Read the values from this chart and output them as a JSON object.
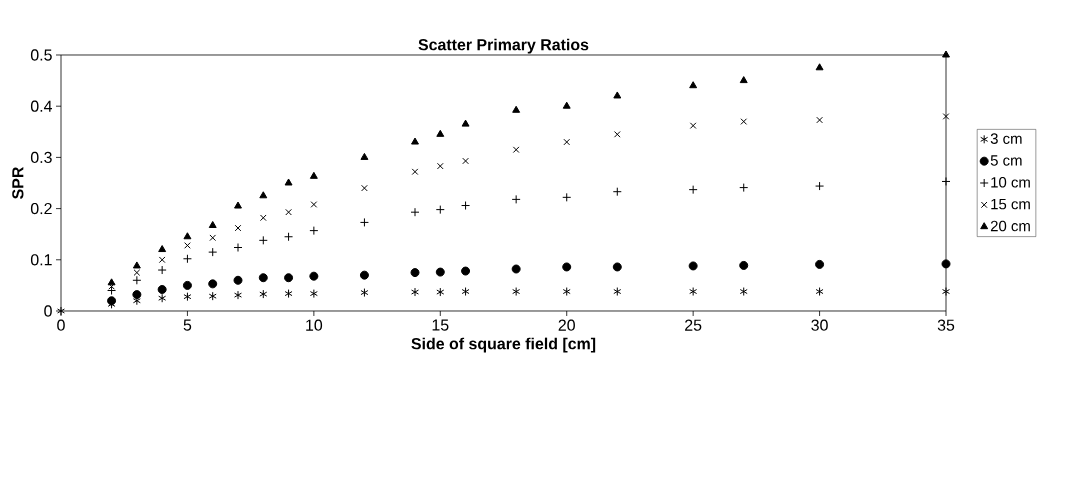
{
  "chart_data": {
    "type": "scatter",
    "title": "Scatter Primary Ratios",
    "xlabel": "Side of square field [cm]",
    "ylabel": "SPR",
    "x": [
      0,
      2,
      3,
      4,
      5,
      6,
      7,
      8,
      9,
      10,
      12,
      14,
      15,
      16,
      18,
      20,
      22,
      25,
      27,
      30,
      35
    ],
    "xlim": [
      0,
      35
    ],
    "xticks": [
      0,
      5,
      10,
      15,
      20,
      25,
      30,
      35
    ],
    "ylim": [
      0,
      0.5
    ],
    "yticks": [
      0,
      0.1,
      0.2,
      0.3,
      0.4,
      0.5
    ],
    "grid": false,
    "legend": "right",
    "series": [
      {
        "name": "3 cm",
        "color": "#000000",
        "values": [
          0,
          0.013,
          0.02,
          0.025,
          0.028,
          0.029,
          0.031,
          0.033,
          0.034,
          0.034,
          0.036,
          0.037,
          0.037,
          0.038,
          0.038,
          0.038,
          0.038,
          0.038,
          0.038,
          0.038,
          0.038
        ]
      },
      {
        "name": "5 cm",
        "color": "#000000",
        "values": [
          null,
          0.02,
          0.032,
          0.042,
          0.05,
          0.053,
          0.06,
          0.065,
          0.065,
          0.068,
          0.07,
          0.075,
          0.076,
          0.078,
          0.082,
          0.086,
          0.086,
          0.088,
          0.089,
          0.091,
          0.092
        ]
      },
      {
        "name": "10 cm",
        "color": "#000000",
        "values": [
          null,
          0.04,
          0.06,
          0.08,
          0.102,
          0.115,
          0.124,
          0.138,
          0.145,
          0.157,
          0.173,
          0.193,
          0.198,
          0.206,
          0.218,
          0.222,
          0.233,
          0.237,
          0.241,
          0.244,
          0.253
        ]
      },
      {
        "name": "15 cm",
        "color": "#000000",
        "values": [
          null,
          0.048,
          0.075,
          0.1,
          0.128,
          0.143,
          0.162,
          0.182,
          0.193,
          0.208,
          0.24,
          0.272,
          0.283,
          0.293,
          0.315,
          0.33,
          0.345,
          0.362,
          0.37,
          0.373,
          0.38
        ]
      },
      {
        "name": "20 cm",
        "color": "#000000",
        "values": [
          null,
          0.055,
          0.088,
          0.12,
          0.145,
          0.167,
          0.205,
          0.225,
          0.25,
          0.263,
          0.3,
          0.33,
          0.345,
          0.365,
          0.392,
          0.4,
          0.42,
          0.44,
          0.45,
          0.475,
          0.5
        ]
      }
    ]
  }
}
